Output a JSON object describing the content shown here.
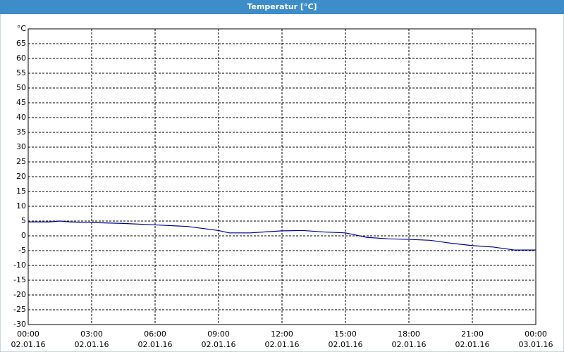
{
  "chart_data": {
    "type": "line",
    "title": "Temperatur [°C]",
    "x": [
      0,
      1,
      1.5,
      2,
      3,
      4.5,
      6,
      7.5,
      9,
      9.5,
      10.5,
      12,
      13,
      14,
      15,
      16,
      17,
      18,
      19,
      20,
      21,
      22,
      23,
      24
    ],
    "series": [
      {
        "name": "Temperatur",
        "color": "#00008b",
        "values": [
          4.7,
          4.7,
          5.0,
          4.7,
          4.5,
          4.2,
          3.7,
          3.2,
          1.8,
          1.0,
          1.0,
          1.7,
          1.8,
          1.3,
          1.0,
          -0.5,
          -1.0,
          -1.2,
          -1.5,
          -2.5,
          -3.3,
          -3.8,
          -4.8,
          -4.8
        ]
      }
    ],
    "xlim": [
      0,
      24
    ],
    "xticks": [
      {
        "value": 0,
        "label": [
          "00:00",
          "02.01.16"
        ]
      },
      {
        "value": 3,
        "label": [
          "03:00",
          "02.01.16"
        ]
      },
      {
        "value": 6,
        "label": [
          "06:00",
          "02.01.16"
        ]
      },
      {
        "value": 9,
        "label": [
          "09:00",
          "02.01.16"
        ]
      },
      {
        "value": 12,
        "label": [
          "12:00",
          "02.01.16"
        ]
      },
      {
        "value": 15,
        "label": [
          "15:00",
          "02.01.16"
        ]
      },
      {
        "value": 18,
        "label": [
          "18:00",
          "02.01.16"
        ]
      },
      {
        "value": 21,
        "label": [
          "21:00",
          "02.01.16"
        ]
      },
      {
        "value": 24,
        "label": [
          "00:00",
          "03.01.16"
        ]
      }
    ],
    "ylim": [
      -30,
      70
    ],
    "yticks": [
      -30,
      -25,
      -20,
      -15,
      -10,
      -5,
      0,
      5,
      10,
      15,
      20,
      25,
      30,
      35,
      40,
      45,
      50,
      55,
      60,
      65,
      {
        "value": 70,
        "label": "°C"
      }
    ],
    "grid": true
  }
}
